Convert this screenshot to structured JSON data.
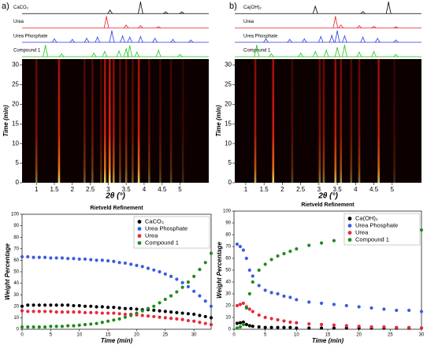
{
  "chart_data": [
    {
      "type": "pattern",
      "panel": "a)",
      "xlim": [
        0.6,
        5.8
      ],
      "series": [
        {
          "name": "CaCO₃",
          "color": "#000000",
          "peaks": [
            3.05,
            3.9,
            4.6,
            5.05
          ],
          "values": [
            30,
            100,
            15,
            15
          ]
        },
        {
          "name": "Urea",
          "color": "#e8202a",
          "peaks": [
            2.95,
            3.5,
            3.9,
            4.4
          ],
          "values": [
            100,
            25,
            20,
            12
          ]
        },
        {
          "name": "Urea Phosphate",
          "color": "#2a3fe0",
          "peaks": [
            1.5,
            2.0,
            2.4,
            2.7,
            3.1,
            3.4,
            3.6,
            3.9,
            4.3,
            4.8,
            5.3
          ],
          "values": [
            30,
            25,
            35,
            45,
            100,
            55,
            45,
            50,
            35,
            25,
            20
          ]
        },
        {
          "name": "Compound 1",
          "color": "#1fc41f",
          "peaks": [
            1.25,
            1.7,
            2.6,
            2.9,
            3.3,
            3.5,
            3.6,
            3.8,
            4.4,
            5.0
          ],
          "values": [
            100,
            25,
            30,
            45,
            50,
            70,
            95,
            40,
            55,
            20
          ]
        }
      ]
    },
    {
      "type": "heatmap",
      "xlabel": "2θ (°)",
      "ylabel": "Time (min)",
      "xlim": [
        0.6,
        5.8
      ],
      "xticks": [
        1,
        1.5,
        2,
        2.5,
        3,
        3.5,
        4,
        4.5,
        5
      ],
      "ylim": [
        0,
        31.5
      ],
      "yticks": [
        0,
        5,
        10,
        15,
        20,
        25,
        30
      ],
      "x": [
        1.0,
        1.63,
        2.34,
        2.56,
        2.8,
        2.91,
        3.04,
        3.15,
        3.33,
        3.5,
        3.68,
        3.85,
        4.14,
        4.45,
        4.75,
        5.08
      ],
      "values": [
        0.5,
        0.9,
        0.4,
        0.4,
        0.3,
        0.9,
        1,
        0.7,
        0.4,
        0.5,
        0.4,
        0.9,
        0.4,
        0.3,
        0.3,
        0.2
      ]
    },
    {
      "type": "scatter",
      "title": "Rietveld Refinement",
      "xlabel": "Time (min)",
      "ylabel": "Weight Percentage",
      "xlim": [
        0,
        33
      ],
      "xticks": [
        0,
        5,
        10,
        15,
        20,
        25,
        30
      ],
      "ylim": [
        0,
        100
      ],
      "yticks": [
        0,
        10,
        20,
        30,
        40,
        50,
        60,
        70,
        80,
        90,
        100
      ],
      "legend": "upper right",
      "x": [
        0,
        1,
        2,
        3,
        4,
        5,
        6,
        7,
        8,
        9,
        10,
        11,
        12,
        13,
        14,
        15,
        16,
        17,
        18,
        19,
        20,
        21,
        22,
        23,
        24,
        25,
        26,
        27,
        28,
        29,
        30,
        31,
        32,
        33
      ],
      "series": [
        {
          "name": "CaCO₃",
          "color": "#000000",
          "values": [
            20,
            21,
            21,
            21,
            21,
            21,
            21,
            21,
            21,
            20.5,
            20.5,
            20,
            20,
            19.5,
            19.5,
            19,
            19,
            18.5,
            18,
            18,
            17.5,
            17,
            17,
            16.5,
            16,
            15.5,
            15,
            14.5,
            14,
            13.5,
            13,
            12,
            11,
            10
          ]
        },
        {
          "name": "Urea Phosphate",
          "color": "#3d5ce0",
          "values": [
            63,
            63,
            62.5,
            62.5,
            62.5,
            62,
            62,
            62,
            61.5,
            61.5,
            61,
            61,
            60.5,
            60,
            60,
            59.5,
            59,
            58,
            57.5,
            56.5,
            55.5,
            54.5,
            53,
            51.5,
            50,
            48,
            46,
            43.5,
            40.5,
            37,
            33,
            29,
            24.5,
            20
          ]
        },
        {
          "name": "Urea",
          "color": "#e8283a",
          "values": [
            16,
            15.5,
            15.5,
            15.5,
            15.5,
            15.5,
            15,
            15,
            15,
            15,
            15,
            14.5,
            14.5,
            14.5,
            14,
            14,
            14,
            13.5,
            13,
            13,
            12.5,
            12,
            11.5,
            11,
            10.5,
            10,
            9.5,
            9,
            8.5,
            7.5,
            7,
            6,
            5,
            4
          ]
        },
        {
          "name": "Compound 1",
          "color": "#1e8c1e",
          "values": [
            2,
            2,
            2,
            2,
            2,
            2.5,
            2.5,
            2.5,
            3,
            3,
            3.5,
            4,
            4.5,
            5,
            6,
            7,
            8,
            9,
            10.5,
            12,
            14,
            16,
            18,
            20,
            23,
            26,
            29,
            32.5,
            36.5,
            41,
            46,
            52,
            58,
            66
          ]
        }
      ]
    },
    {
      "type": "pattern",
      "panel": "b)",
      "xlim": [
        0.7,
        5.8
      ],
      "series": [
        {
          "name": "Ca(OH)₂",
          "color": "#000000",
          "peaks": [
            2.9,
            4.2,
            4.9
          ],
          "values": [
            65,
            18,
            100
          ]
        },
        {
          "name": "Urea",
          "color": "#e8202a",
          "peaks": [
            3.45,
            3.6,
            4.1,
            4.5,
            5.1
          ],
          "values": [
            100,
            25,
            20,
            15,
            10
          ]
        },
        {
          "name": "Urea Phosphate",
          "color": "#2a3fe0",
          "peaks": [
            1.55,
            2.2,
            2.6,
            3.05,
            3.35,
            3.5,
            3.7,
            4.2,
            4.6,
            5.1
          ],
          "values": [
            30,
            25,
            30,
            50,
            60,
            100,
            55,
            45,
            35,
            20
          ]
        },
        {
          "name": "Compound 1",
          "color": "#1fc41f",
          "peaks": [
            1.3,
            1.7,
            2.5,
            2.9,
            3.2,
            3.5,
            3.7,
            4.1,
            4.5,
            5.1
          ],
          "values": [
            100,
            25,
            30,
            45,
            55,
            80,
            100,
            40,
            45,
            20
          ]
        }
      ]
    },
    {
      "type": "heatmap",
      "xlabel": "2θ (°)",
      "ylabel": "Time (min)",
      "xlim": [
        0.7,
        5.8
      ],
      "xticks": [
        1,
        1.5,
        2,
        2.5,
        3,
        3.5,
        4,
        4.5,
        5
      ],
      "ylim": [
        0,
        31.5
      ],
      "yticks": [
        0,
        5,
        10,
        15,
        20,
        25,
        30
      ],
      "x": [
        1.26,
        1.75,
        2.27,
        3.02,
        3.13,
        3.45,
        3.6,
        3.88,
        4.1,
        4.63,
        5.06
      ],
      "values": [
        0.7,
        0.9,
        0.3,
        0.5,
        0.5,
        0.8,
        0.6,
        0.4,
        0.5,
        0.8,
        0.2
      ]
    },
    {
      "type": "scatter",
      "title": "Rietveld Refinement",
      "xlabel": "Time (min)",
      "ylabel": "Weight Percentage",
      "xlim": [
        0,
        30
      ],
      "xticks": [
        0,
        5,
        10,
        15,
        20,
        25,
        30
      ],
      "ylim": [
        0,
        100
      ],
      "yticks": [
        0,
        10,
        20,
        30,
        40,
        50,
        60,
        70,
        80,
        90,
        100
      ],
      "legend": "upper right",
      "x": [
        0.5,
        1,
        1.5,
        2,
        2.5,
        3,
        4,
        5,
        6,
        7,
        8,
        9,
        10,
        12,
        14,
        16,
        18,
        20,
        22,
        24,
        26,
        28,
        30
      ],
      "series": [
        {
          "name": "Ca(OH)₂",
          "color": "#000000",
          "values": [
            5,
            5.5,
            6,
            4,
            3,
            2.5,
            2,
            1.5,
            1.5,
            1.5,
            1.5,
            1.5,
            1,
            1,
            1,
            1,
            1,
            1,
            1,
            1,
            1,
            1,
            1
          ]
        },
        {
          "name": "Urea Phosphate",
          "color": "#3d5ce0",
          "values": [
            72,
            70,
            67,
            60,
            50,
            45,
            37,
            33,
            31,
            30,
            28,
            27,
            25,
            23,
            22,
            21,
            20,
            19,
            18,
            17,
            16,
            16,
            15
          ]
        },
        {
          "name": "Urea",
          "color": "#e8283a",
          "values": [
            20,
            21,
            22,
            19,
            17,
            15,
            12,
            10,
            9,
            8,
            7,
            6,
            5.5,
            4.5,
            4,
            3.5,
            3,
            2.5,
            2,
            2,
            1.5,
            1.5,
            1
          ]
        },
        {
          "name": "Compound 1",
          "color": "#1e8c1e",
          "values": [
            1,
            2,
            4,
            18,
            30,
            40,
            50,
            55,
            59,
            62,
            64,
            66,
            68,
            71,
            73,
            75,
            77,
            79,
            80,
            81,
            82,
            83,
            84
          ]
        }
      ]
    }
  ]
}
